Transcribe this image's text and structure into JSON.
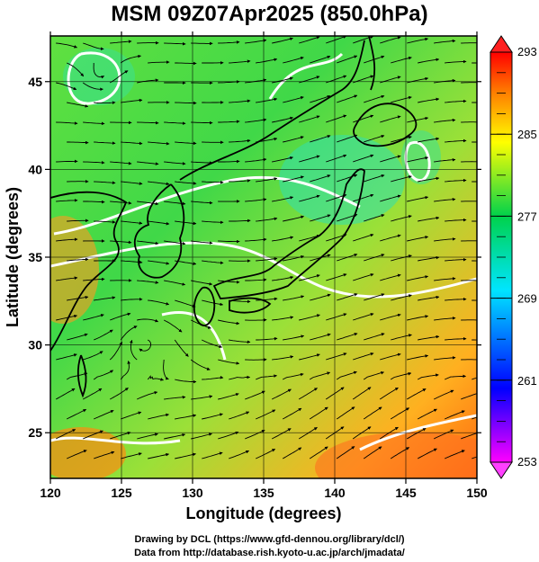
{
  "title": "MSM 09Z07Apr2025 (850.0hPa)",
  "axes": {
    "xlabel": "Longitude (degrees)",
    "ylabel": "Latitude  (degrees)",
    "x_ticks": [
      "120",
      "125",
      "130",
      "135",
      "140",
      "145",
      "150"
    ],
    "y_ticks": [
      "25",
      "30",
      "35",
      "40",
      "45"
    ],
    "x_range": [
      120,
      150
    ],
    "y_range": [
      22.4,
      47.6
    ]
  },
  "colorbar": {
    "labels": [
      "293",
      "285",
      "277",
      "269",
      "261",
      "253"
    ],
    "range": [
      253,
      293
    ],
    "colors": [
      "#ff00ff",
      "#0000ff",
      "#00e5ff",
      "#00d24b",
      "#ffff00",
      "#ff8000",
      "#ff0000"
    ]
  },
  "credits": {
    "line1": "Drawing by DCL (https://www.gfd-dennou.org/library/dcl/)",
    "line2": "Data from http://database.rish.kyoto-u.ac.jp/arch/jmadata/"
  }
}
